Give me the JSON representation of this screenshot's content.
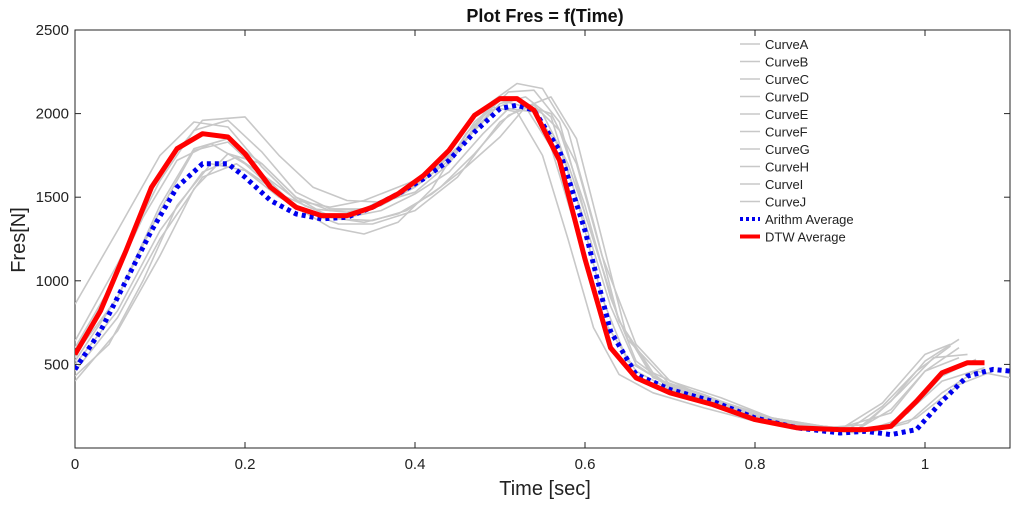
{
  "chart_data": {
    "type": "line",
    "title": "Plot Fres = f(Time)",
    "xlabel": "Time [sec]",
    "ylabel": "Fres[N]",
    "xlim": [
      0,
      1.1
    ],
    "ylim": [
      0,
      2500
    ],
    "xticks": [
      0,
      0.2,
      0.4,
      0.6,
      0.8,
      1
    ],
    "xtick_labels": [
      "0",
      "0.2",
      "0.4",
      "0.6",
      "0.8",
      "1"
    ],
    "yticks": [
      500,
      1000,
      1500,
      2000,
      2500
    ],
    "ytick_labels": [
      "500",
      "1000",
      "1500",
      "2000",
      "2500"
    ],
    "grid": false,
    "legend_position": "top-right",
    "colors": {
      "curves": "#c8c8c8",
      "arithm": "#0000ee",
      "dtw": "#ff0000"
    },
    "series": [
      {
        "name": "CurveA",
        "style": "thin-gray",
        "x": [
          0,
          0.05,
          0.1,
          0.14,
          0.18,
          0.22,
          0.26,
          0.3,
          0.34,
          0.4,
          0.44,
          0.48,
          0.5,
          0.53,
          0.56,
          0.59,
          0.62,
          0.65,
          0.7,
          0.75,
          0.8,
          0.85,
          0.9,
          0.95,
          1.0,
          1.03
        ],
        "y": [
          860,
          1300,
          1750,
          1950,
          1920,
          1680,
          1480,
          1440,
          1480,
          1600,
          1750,
          1950,
          2060,
          2100,
          1980,
          1500,
          900,
          520,
          370,
          280,
          180,
          130,
          110,
          270,
          560,
          620
        ]
      },
      {
        "name": "CurveB",
        "style": "thin-gray",
        "x": [
          0,
          0.05,
          0.1,
          0.14,
          0.18,
          0.22,
          0.26,
          0.3,
          0.34,
          0.4,
          0.45,
          0.49,
          0.52,
          0.55,
          0.58,
          0.61,
          0.64,
          0.68,
          0.72,
          0.78,
          0.84,
          0.9,
          0.96,
          1.0,
          1.04
        ],
        "y": [
          560,
          900,
          1450,
          1790,
          1850,
          1700,
          1500,
          1420,
          1430,
          1580,
          1780,
          2020,
          2090,
          2000,
          1700,
          1250,
          760,
          430,
          330,
          230,
          150,
          120,
          210,
          460,
          600
        ]
      },
      {
        "name": "CurveC",
        "style": "thin-gray",
        "x": [
          0,
          0.04,
          0.08,
          0.12,
          0.16,
          0.2,
          0.24,
          0.28,
          0.32,
          0.36,
          0.4,
          0.44,
          0.48,
          0.51,
          0.54,
          0.57,
          0.6,
          0.63,
          0.66,
          0.7,
          0.75,
          0.8,
          0.86,
          0.92,
          0.97,
          1.02,
          1.07
        ],
        "y": [
          430,
          620,
          1000,
          1450,
          1700,
          1660,
          1500,
          1400,
          1380,
          1420,
          1520,
          1650,
          1880,
          2030,
          2010,
          1800,
          1350,
          850,
          500,
          360,
          270,
          170,
          120,
          90,
          170,
          400,
          480
        ]
      },
      {
        "name": "CurveD",
        "style": "thin-gray",
        "x": [
          0,
          0.05,
          0.1,
          0.15,
          0.2,
          0.24,
          0.28,
          0.32,
          0.36,
          0.4,
          0.44,
          0.48,
          0.51,
          0.54,
          0.57,
          0.6,
          0.64,
          0.68,
          0.74,
          0.8,
          0.86,
          0.92,
          0.96,
          1.0,
          1.04
        ],
        "y": [
          540,
          1050,
          1650,
          1960,
          1980,
          1750,
          1560,
          1480,
          1470,
          1530,
          1700,
          1980,
          2130,
          2140,
          1950,
          1400,
          760,
          420,
          320,
          200,
          140,
          110,
          280,
          520,
          650
        ]
      },
      {
        "name": "CurveE",
        "style": "thin-gray",
        "x": [
          0,
          0.05,
          0.1,
          0.15,
          0.19,
          0.23,
          0.27,
          0.31,
          0.35,
          0.4,
          0.45,
          0.5,
          0.53,
          0.56,
          0.59,
          0.62,
          0.66,
          0.7,
          0.76,
          0.82,
          0.88,
          0.94,
          0.99,
          1.04,
          1.08
        ],
        "y": [
          460,
          780,
          1250,
          1620,
          1700,
          1560,
          1420,
          1340,
          1340,
          1420,
          1620,
          1950,
          2050,
          2000,
          1700,
          1150,
          620,
          400,
          300,
          180,
          130,
          100,
          180,
          380,
          460
        ]
      },
      {
        "name": "CurveF",
        "style": "thin-gray",
        "x": [
          0,
          0.04,
          0.08,
          0.12,
          0.16,
          0.2,
          0.24,
          0.28,
          0.32,
          0.36,
          0.4,
          0.44,
          0.47,
          0.5,
          0.53,
          0.56,
          0.59,
          0.62,
          0.66,
          0.7,
          0.76,
          0.82,
          0.88,
          0.93,
          0.97,
          1.01,
          1.05
        ],
        "y": [
          600,
          950,
          1380,
          1720,
          1820,
          1700,
          1520,
          1430,
          1410,
          1450,
          1560,
          1720,
          1950,
          2080,
          2040,
          1800,
          1300,
          780,
          460,
          350,
          260,
          160,
          120,
          140,
          330,
          540,
          560
        ]
      },
      {
        "name": "CurveG",
        "style": "thin-gray",
        "x": [
          0,
          0.05,
          0.1,
          0.14,
          0.18,
          0.22,
          0.26,
          0.3,
          0.34,
          0.38,
          0.42,
          0.46,
          0.49,
          0.52,
          0.55,
          0.58,
          0.61,
          0.64,
          0.68,
          0.74,
          0.8,
          0.86,
          0.91,
          0.95,
          0.99,
          1.03
        ],
        "y": [
          640,
          1100,
          1600,
          1900,
          1960,
          1770,
          1530,
          1430,
          1430,
          1500,
          1640,
          1850,
          2070,
          2180,
          2150,
          1900,
          1350,
          760,
          450,
          310,
          190,
          130,
          110,
          250,
          460,
          610
        ]
      },
      {
        "name": "CurveH",
        "style": "thin-gray",
        "x": [
          0,
          0.05,
          0.1,
          0.15,
          0.19,
          0.23,
          0.27,
          0.31,
          0.35,
          0.39,
          0.43,
          0.47,
          0.51,
          0.54,
          0.57,
          0.6,
          0.63,
          0.66,
          0.7,
          0.76,
          0.82,
          0.88,
          0.94,
          0.98,
          1.02,
          1.06
        ],
        "y": [
          500,
          820,
          1300,
          1650,
          1740,
          1600,
          1450,
          1370,
          1360,
          1420,
          1560,
          1760,
          1990,
          2050,
          1900,
          1450,
          900,
          520,
          370,
          270,
          170,
          120,
          100,
          210,
          430,
          530
        ]
      },
      {
        "name": "CurveI",
        "style": "thin-gray",
        "x": [
          0,
          0.05,
          0.1,
          0.14,
          0.18,
          0.22,
          0.26,
          0.3,
          0.34,
          0.38,
          0.42,
          0.46,
          0.49,
          0.52,
          0.55,
          0.58,
          0.61,
          0.64,
          0.68,
          0.74,
          0.8,
          0.86,
          0.92,
          0.96,
          1.0,
          1.04
        ],
        "y": [
          520,
          900,
          1420,
          1780,
          1830,
          1640,
          1440,
          1320,
          1280,
          1350,
          1550,
          1880,
          2040,
          2010,
          1750,
          1250,
          720,
          440,
          330,
          240,
          160,
          120,
          110,
          230,
          460,
          540
        ]
      },
      {
        "name": "CurveJ",
        "style": "thin-gray",
        "x": [
          0,
          0.05,
          0.1,
          0.14,
          0.18,
          0.22,
          0.26,
          0.3,
          0.34,
          0.38,
          0.42,
          0.46,
          0.5,
          0.53,
          0.56,
          0.59,
          0.62,
          0.65,
          0.7,
          0.76,
          0.82,
          0.88,
          0.94,
          0.98,
          1.02,
          1.06,
          1.1
        ],
        "y": [
          400,
          700,
          1150,
          1550,
          1760,
          1700,
          1500,
          1380,
          1350,
          1400,
          1520,
          1680,
          1860,
          2040,
          2100,
          1850,
          1250,
          650,
          380,
          280,
          180,
          130,
          100,
          150,
          330,
          460,
          420
        ]
      },
      {
        "name": "Arithm Average",
        "style": "dotted-blue",
        "x": [
          0,
          0.03,
          0.06,
          0.09,
          0.12,
          0.15,
          0.18,
          0.2,
          0.23,
          0.26,
          0.29,
          0.32,
          0.35,
          0.38,
          0.41,
          0.44,
          0.47,
          0.5,
          0.52,
          0.54,
          0.57,
          0.6,
          0.63,
          0.66,
          0.7,
          0.75,
          0.8,
          0.85,
          0.9,
          0.93,
          0.96,
          0.99,
          1.02,
          1.05,
          1.08,
          1.1
        ],
        "y": [
          470,
          700,
          1000,
          1300,
          1560,
          1700,
          1700,
          1620,
          1480,
          1400,
          1370,
          1380,
          1440,
          1520,
          1610,
          1720,
          1890,
          2030,
          2050,
          2020,
          1780,
          1300,
          700,
          440,
          350,
          280,
          180,
          120,
          90,
          100,
          80,
          110,
          280,
          430,
          470,
          460
        ]
      },
      {
        "name": "DTW Average",
        "style": "thick-red",
        "x": [
          0,
          0.03,
          0.06,
          0.09,
          0.12,
          0.15,
          0.18,
          0.2,
          0.23,
          0.26,
          0.29,
          0.32,
          0.35,
          0.38,
          0.41,
          0.44,
          0.47,
          0.5,
          0.52,
          0.54,
          0.57,
          0.6,
          0.63,
          0.66,
          0.7,
          0.75,
          0.8,
          0.85,
          0.9,
          0.93,
          0.96,
          0.99,
          1.02,
          1.05,
          1.07
        ],
        "y": [
          560,
          820,
          1180,
          1560,
          1790,
          1880,
          1860,
          1760,
          1560,
          1440,
          1390,
          1390,
          1440,
          1520,
          1630,
          1780,
          1990,
          2090,
          2090,
          2020,
          1720,
          1130,
          600,
          420,
          330,
          260,
          170,
          120,
          110,
          110,
          130,
          280,
          450,
          510,
          510
        ]
      }
    ]
  }
}
